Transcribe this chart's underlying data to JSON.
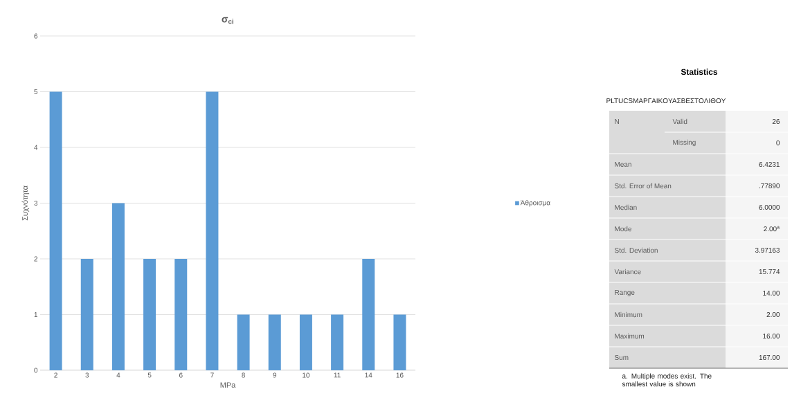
{
  "chart_data": [
    {
      "type": "bar",
      "title": "**σ$_{ci}$**",
      "xlabel": "MPa",
      "ylabel": "Συχνότητα",
      "categories": [
        "2",
        "3",
        "4",
        "5",
        "6",
        "7",
        "8",
        "9",
        "10",
        "11",
        "14",
        "16"
      ],
      "series": [
        {
          "name": "Άθροισμα",
          "color": "#5b9bd5",
          "values": [
            5,
            2,
            3,
            2,
            2,
            5,
            1,
            1,
            1,
            1,
            2,
            1
          ]
        }
      ],
      "ylim": [
        0,
        6
      ],
      "yticks": [
        0,
        1,
        2,
        3,
        4,
        5,
        6
      ],
      "grid": "y",
      "legend": "right"
    },
    {
      "type": "other",
      "title": "Statistics",
      "subtitle": "PLTUCSMAPΓAIKOYAΣBEΣTOΛIΘOY",
      "annotations": [
        "N",
        "Valid",
        "26",
        "Missing",
        "0",
        "Mean",
        "6.4231",
        "Std. Error of Mean",
        ".77890",
        "Median",
        "6.0000",
        "Mode",
        "2.00$^{a}$",
        "Std. Deviation",
        "3.97163",
        "Variance",
        "15.774",
        "Range",
        "14.00",
        "Minimum",
        "2.00",
        "Maximum",
        "16.00",
        "Sum",
        "167.00",
        "a. Multiple modes exist. The smallest value is shown"
      ]
    }
  ]
}
